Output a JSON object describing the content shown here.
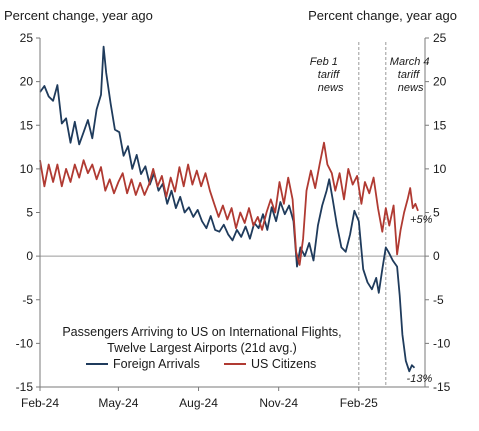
{
  "chart_data": {
    "type": "line",
    "left_axis_title": "Percent change, year ago",
    "right_axis_title": "Percent change, year ago",
    "legend_title_line1": "Passengers Arriving to US on International Flights,",
    "legend_title_line2": "Twelve Largest Airports (21d avg.)",
    "ylim": [
      -15,
      25
    ],
    "yticks": [
      -15,
      -10,
      -5,
      0,
      5,
      10,
      15,
      20,
      25
    ],
    "ytick_labels": [
      "-15",
      "-10",
      "-5",
      "0",
      "5",
      "10",
      "15",
      "20",
      "25"
    ],
    "xlim": [
      "2024-02-01",
      "2025-04-18"
    ],
    "xticks": [
      {
        "date": "2024-02-01",
        "label": "Feb-24"
      },
      {
        "date": "2024-05-01",
        "label": "May-24"
      },
      {
        "date": "2024-08-01",
        "label": "Aug-24"
      },
      {
        "date": "2024-11-01",
        "label": "Nov-24"
      },
      {
        "date": "2025-02-01",
        "label": "Feb-25"
      }
    ],
    "annotations": [
      {
        "date": "2025-02-01",
        "lines": [
          "Feb 1",
          "tariff",
          "news"
        ]
      },
      {
        "date": "2025-03-04",
        "lines": [
          "March 4",
          "tariff",
          "news"
        ]
      }
    ],
    "end_labels": [
      {
        "series": "US Citizens",
        "text": "+5%"
      },
      {
        "series": "Foreign Arrivals",
        "text": "-13%"
      }
    ],
    "series": [
      {
        "name": "Foreign Arrivals",
        "color": "#1f3b5c",
        "points": [
          [
            "2024-02-01",
            18.8
          ],
          [
            "2024-02-06",
            19.5
          ],
          [
            "2024-02-11",
            18.3
          ],
          [
            "2024-02-16",
            17.8
          ],
          [
            "2024-02-21",
            19.6
          ],
          [
            "2024-02-26",
            15.2
          ],
          [
            "2024-03-02",
            15.8
          ],
          [
            "2024-03-07",
            13.0
          ],
          [
            "2024-03-12",
            15.4
          ],
          [
            "2024-03-17",
            12.8
          ],
          [
            "2024-03-22",
            14.2
          ],
          [
            "2024-03-27",
            15.6
          ],
          [
            "2024-04-01",
            13.5
          ],
          [
            "2024-04-06",
            16.8
          ],
          [
            "2024-04-11",
            18.5
          ],
          [
            "2024-04-14",
            24.0
          ],
          [
            "2024-04-17",
            21.0
          ],
          [
            "2024-04-22",
            17.5
          ],
          [
            "2024-04-27",
            14.5
          ],
          [
            "2024-05-02",
            14.2
          ],
          [
            "2024-05-07",
            11.5
          ],
          [
            "2024-05-12",
            12.6
          ],
          [
            "2024-05-17",
            10.0
          ],
          [
            "2024-05-22",
            11.6
          ],
          [
            "2024-05-27",
            9.4
          ],
          [
            "2024-06-01",
            10.3
          ],
          [
            "2024-06-06",
            8.2
          ],
          [
            "2024-06-11",
            9.5
          ],
          [
            "2024-06-16",
            7.5
          ],
          [
            "2024-06-21",
            8.3
          ],
          [
            "2024-06-26",
            6.0
          ],
          [
            "2024-07-01",
            7.5
          ],
          [
            "2024-07-06",
            5.5
          ],
          [
            "2024-07-11",
            6.8
          ],
          [
            "2024-07-16",
            5.0
          ],
          [
            "2024-07-21",
            5.6
          ],
          [
            "2024-07-26",
            4.5
          ],
          [
            "2024-07-31",
            5.3
          ],
          [
            "2024-08-05",
            4.0
          ],
          [
            "2024-08-10",
            3.2
          ],
          [
            "2024-08-15",
            4.6
          ],
          [
            "2024-08-20",
            3.0
          ],
          [
            "2024-08-25",
            2.8
          ],
          [
            "2024-08-30",
            3.6
          ],
          [
            "2024-09-04",
            2.5
          ],
          [
            "2024-09-09",
            1.8
          ],
          [
            "2024-09-14",
            3.0
          ],
          [
            "2024-09-19",
            2.2
          ],
          [
            "2024-09-24",
            3.4
          ],
          [
            "2024-09-29",
            2.0
          ],
          [
            "2024-10-04",
            3.8
          ],
          [
            "2024-10-09",
            3.2
          ],
          [
            "2024-10-14",
            4.8
          ],
          [
            "2024-10-19",
            3.0
          ],
          [
            "2024-10-24",
            5.6
          ],
          [
            "2024-10-29",
            4.0
          ],
          [
            "2024-11-03",
            6.2
          ],
          [
            "2024-11-08",
            4.8
          ],
          [
            "2024-11-13",
            5.8
          ],
          [
            "2024-11-18",
            4.0
          ],
          [
            "2024-11-22",
            -1.2
          ],
          [
            "2024-11-26",
            1.0
          ],
          [
            "2024-12-01",
            0.0
          ],
          [
            "2024-12-06",
            1.5
          ],
          [
            "2024-12-11",
            -0.5
          ],
          [
            "2024-12-16",
            3.5
          ],
          [
            "2024-12-21",
            5.8
          ],
          [
            "2024-12-26",
            7.5
          ],
          [
            "2024-12-29",
            8.8
          ],
          [
            "2025-01-02",
            6.5
          ],
          [
            "2025-01-07",
            3.5
          ],
          [
            "2025-01-12",
            1.0
          ],
          [
            "2025-01-17",
            0.5
          ],
          [
            "2025-01-22",
            2.5
          ],
          [
            "2025-01-27",
            5.2
          ],
          [
            "2025-02-01",
            4.0
          ],
          [
            "2025-02-06",
            -1.5
          ],
          [
            "2025-02-11",
            -3.0
          ],
          [
            "2025-02-16",
            -3.8
          ],
          [
            "2025-02-21",
            -2.5
          ],
          [
            "2025-02-24",
            -4.2
          ],
          [
            "2025-02-28",
            -1.5
          ],
          [
            "2025-03-04",
            1.0
          ],
          [
            "2025-03-07",
            0.5
          ],
          [
            "2025-03-12",
            -0.5
          ],
          [
            "2025-03-17",
            -1.2
          ],
          [
            "2025-03-20",
            -4.5
          ],
          [
            "2025-03-23",
            -9.0
          ],
          [
            "2025-03-27",
            -12.0
          ],
          [
            "2025-03-31",
            -13.2
          ],
          [
            "2025-04-03",
            -12.5
          ],
          [
            "2025-04-06",
            -12.8
          ]
        ]
      },
      {
        "name": "US Citizens",
        "color": "#b03a32",
        "points": [
          [
            "2024-02-01",
            11.0
          ],
          [
            "2024-02-06",
            8.0
          ],
          [
            "2024-02-11",
            10.5
          ],
          [
            "2024-02-16",
            8.5
          ],
          [
            "2024-02-21",
            10.5
          ],
          [
            "2024-02-26",
            8.0
          ],
          [
            "2024-03-02",
            10.0
          ],
          [
            "2024-03-07",
            8.5
          ],
          [
            "2024-03-12",
            10.5
          ],
          [
            "2024-03-17",
            9.0
          ],
          [
            "2024-03-22",
            11.0
          ],
          [
            "2024-03-27",
            9.5
          ],
          [
            "2024-04-01",
            10.5
          ],
          [
            "2024-04-06",
            8.8
          ],
          [
            "2024-04-11",
            10.2
          ],
          [
            "2024-04-16",
            7.5
          ],
          [
            "2024-04-21",
            8.8
          ],
          [
            "2024-04-26",
            7.2
          ],
          [
            "2024-05-01",
            8.5
          ],
          [
            "2024-05-06",
            9.5
          ],
          [
            "2024-05-11",
            7.2
          ],
          [
            "2024-05-16",
            8.8
          ],
          [
            "2024-05-21",
            7.0
          ],
          [
            "2024-05-26",
            8.4
          ],
          [
            "2024-05-31",
            7.0
          ],
          [
            "2024-06-05",
            8.2
          ],
          [
            "2024-06-10",
            10.0
          ],
          [
            "2024-06-15",
            8.0
          ],
          [
            "2024-06-20",
            9.2
          ],
          [
            "2024-06-25",
            6.8
          ],
          [
            "2024-06-30",
            9.0
          ],
          [
            "2024-07-05",
            7.4
          ],
          [
            "2024-07-10",
            10.2
          ],
          [
            "2024-07-15",
            8.0
          ],
          [
            "2024-07-20",
            10.5
          ],
          [
            "2024-07-25",
            8.2
          ],
          [
            "2024-07-30",
            9.8
          ],
          [
            "2024-08-04",
            8.0
          ],
          [
            "2024-08-09",
            9.5
          ],
          [
            "2024-08-14",
            7.5
          ],
          [
            "2024-08-19",
            6.0
          ],
          [
            "2024-08-24",
            4.5
          ],
          [
            "2024-08-29",
            5.8
          ],
          [
            "2024-09-03",
            4.2
          ],
          [
            "2024-09-08",
            5.5
          ],
          [
            "2024-09-13",
            3.2
          ],
          [
            "2024-09-18",
            5.0
          ],
          [
            "2024-09-23",
            3.8
          ],
          [
            "2024-09-28",
            5.5
          ],
          [
            "2024-10-03",
            3.5
          ],
          [
            "2024-10-08",
            4.5
          ],
          [
            "2024-10-13",
            3.0
          ],
          [
            "2024-10-18",
            5.0
          ],
          [
            "2024-10-23",
            6.5
          ],
          [
            "2024-10-28",
            5.0
          ],
          [
            "2024-11-02",
            8.5
          ],
          [
            "2024-11-07",
            6.0
          ],
          [
            "2024-11-12",
            9.0
          ],
          [
            "2024-11-17",
            6.5
          ],
          [
            "2024-11-21",
            0.5
          ],
          [
            "2024-11-25",
            -1.0
          ],
          [
            "2024-11-29",
            2.0
          ],
          [
            "2024-12-03",
            7.5
          ],
          [
            "2024-12-08",
            9.8
          ],
          [
            "2024-12-13",
            7.8
          ],
          [
            "2024-12-18",
            10.5
          ],
          [
            "2024-12-23",
            13.0
          ],
          [
            "2024-12-27",
            10.5
          ],
          [
            "2025-01-01",
            9.5
          ],
          [
            "2025-01-05",
            7.5
          ],
          [
            "2025-01-10",
            9.5
          ],
          [
            "2025-01-15",
            6.5
          ],
          [
            "2025-01-20",
            10.0
          ],
          [
            "2025-01-25",
            8.2
          ],
          [
            "2025-01-30",
            9.2
          ],
          [
            "2025-02-04",
            6.0
          ],
          [
            "2025-02-08",
            8.5
          ],
          [
            "2025-02-13",
            7.2
          ],
          [
            "2025-02-18",
            9.0
          ],
          [
            "2025-02-23",
            5.5
          ],
          [
            "2025-02-28",
            2.8
          ],
          [
            "2025-03-04",
            5.5
          ],
          [
            "2025-03-08",
            3.5
          ],
          [
            "2025-03-13",
            5.8
          ],
          [
            "2025-03-17",
            0.2
          ],
          [
            "2025-03-21",
            3.0
          ],
          [
            "2025-03-25",
            5.0
          ],
          [
            "2025-03-29",
            6.5
          ],
          [
            "2025-04-01",
            7.8
          ],
          [
            "2025-04-04",
            5.5
          ],
          [
            "2025-04-07",
            6.0
          ],
          [
            "2025-04-10",
            5.2
          ]
        ]
      }
    ]
  }
}
